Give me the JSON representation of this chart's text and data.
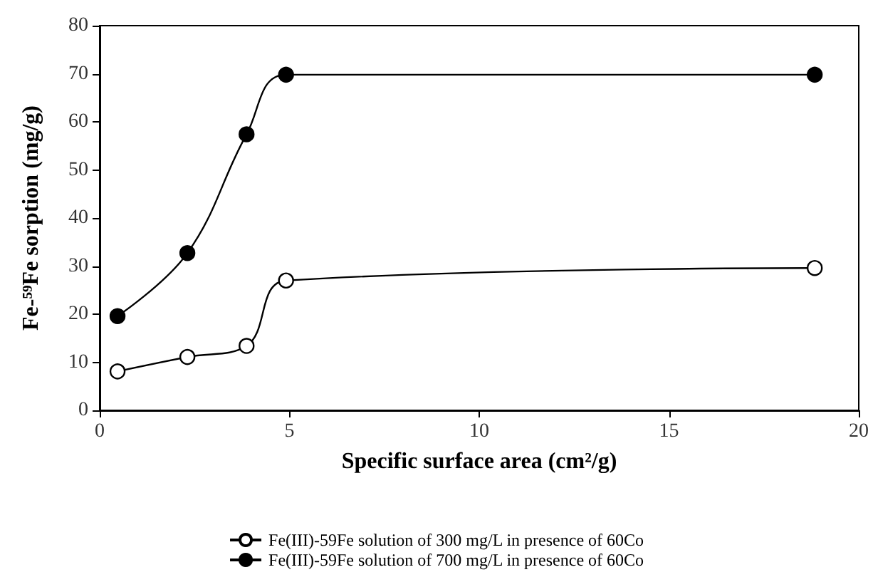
{
  "chart_data": {
    "type": "line",
    "xlabel": "Specific surface area (cm²/g)",
    "ylabel": "Fe-⁵⁹Fe sorption (mg/g)",
    "xlim": [
      0,
      20
    ],
    "xticks": [
      0,
      5,
      10,
      15,
      20
    ],
    "ylim": [
      0,
      80
    ],
    "yticks": [
      0,
      10,
      20,
      30,
      40,
      50,
      60,
      70,
      80
    ],
    "grid": false,
    "legend": "bottom",
    "marker": "circle",
    "line_style": "solid",
    "series": [
      {
        "name": "Fe(III)-59Fe solution of 300 mg/L in presence of 60Co",
        "color": "#000000",
        "x": [
          0.47,
          2.31,
          3.87,
          4.91,
          18.84
        ],
        "values": [
          8.1,
          11.1,
          13.4,
          27.0,
          29.6
        ]
      },
      {
        "name": "Fe(III)-59Fe solution of 700 mg/L in presence of 60Co",
        "color": "#000000",
        "x": [
          0.47,
          2.31,
          3.87,
          4.91,
          18.84
        ],
        "values": [
          19.6,
          32.7,
          57.4,
          69.8,
          69.8
        ]
      }
    ]
  }
}
